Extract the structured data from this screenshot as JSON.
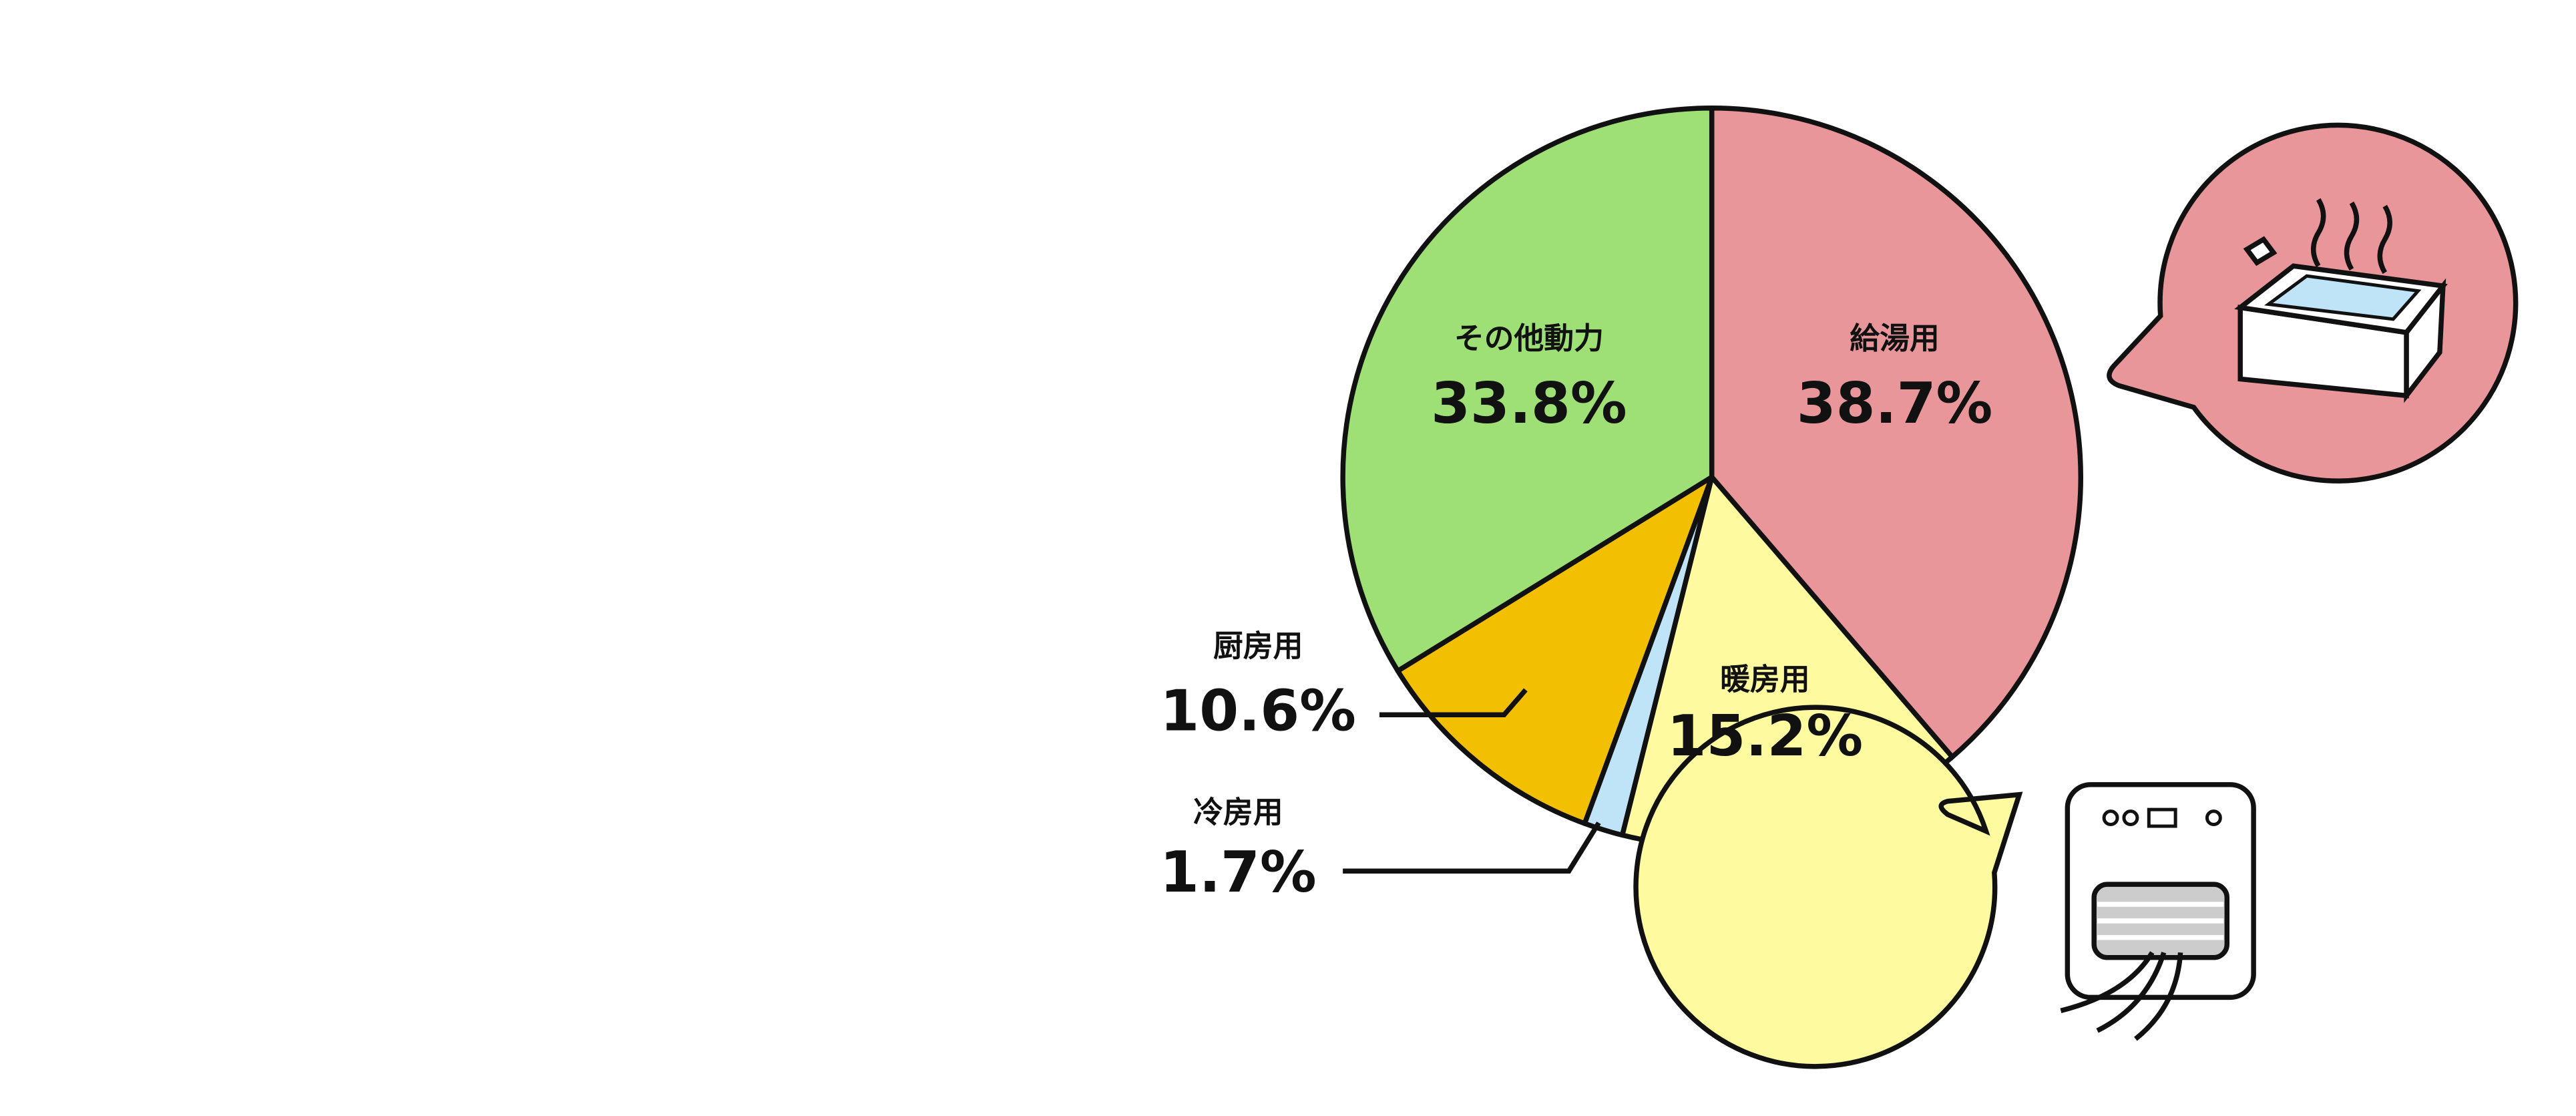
{
  "chart_data": {
    "type": "pie",
    "categories": [
      "給湯用",
      "暖房用",
      "冷房用",
      "厨房用",
      "その他動力"
    ],
    "values": [
      38.7,
      15.2,
      1.7,
      10.6,
      33.8
    ],
    "value_labels": [
      "38.7%",
      "15.2%",
      "1.7%",
      "10.6%",
      "33.8%"
    ],
    "colors": [
      "#e8969a",
      "#fdfaa0",
      "#bfe3f7",
      "#f2c000",
      "#9ee076"
    ]
  }
}
